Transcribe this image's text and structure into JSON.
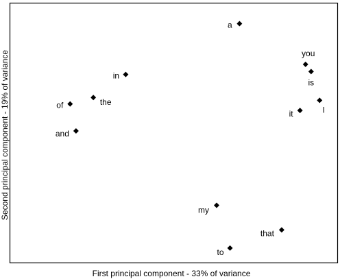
{
  "chart_data": {
    "type": "scatter",
    "title": "",
    "xlabel": "First principal component - 33% of variance",
    "ylabel": "Second principal component - 19% of variance",
    "xlim": [
      0,
      100
    ],
    "ylim": [
      0,
      100
    ],
    "grid": false,
    "legend": "none",
    "marker": "diamond",
    "marker_color": "#000000",
    "points": [
      {
        "label": "a",
        "x": 70.1,
        "y": 92.2
      },
      {
        "label": "in",
        "x": 35.3,
        "y": 72.6
      },
      {
        "label": "you",
        "x": 90.3,
        "y": 76.5
      },
      {
        "label": "is",
        "x": 92.0,
        "y": 73.7
      },
      {
        "label": "of",
        "x": 18.3,
        "y": 61.2
      },
      {
        "label": "the",
        "x": 25.4,
        "y": 63.7
      },
      {
        "label": "I",
        "x": 94.6,
        "y": 62.6
      },
      {
        "label": "it",
        "x": 88.6,
        "y": 58.7
      },
      {
        "label": "and",
        "x": 20.1,
        "y": 50.8
      },
      {
        "label": "my",
        "x": 63.1,
        "y": 22.1
      },
      {
        "label": "that",
        "x": 83.0,
        "y": 12.6
      },
      {
        "label": "to",
        "x": 67.2,
        "y": 5.6
      }
    ]
  }
}
